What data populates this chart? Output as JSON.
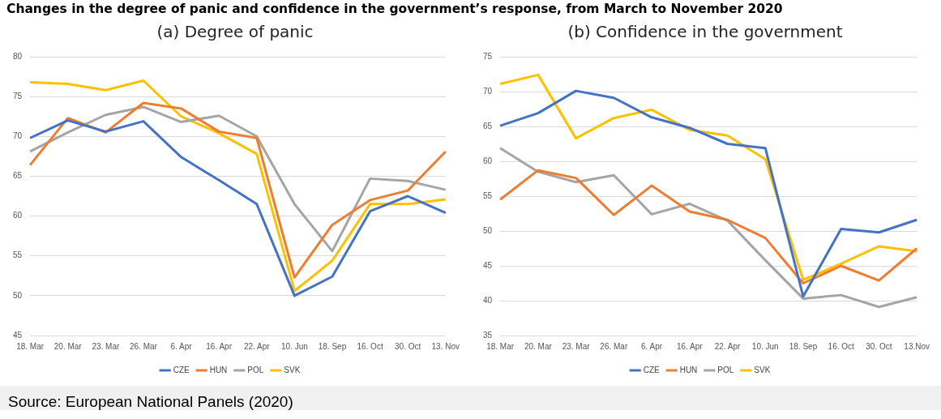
{
  "chart_data": [
    {
      "type": "line",
      "title": "Changes in the degree of panic and confidence in the government’s response, from March to November 2020",
      "subtitle": "(a) Degree of panic",
      "categories": [
        "18. Mar",
        "20. Mar",
        "23. Mar",
        "26. Mar",
        "6. Apr",
        "16. Apr",
        "22. Apr",
        "10. Jun",
        "18. Sep",
        "16. Oct",
        "30. Oct",
        "13. Nov"
      ],
      "series": [
        {
          "name": "CZE",
          "color": "#4472c4",
          "values": [
            69.8,
            72.0,
            70.6,
            71.9,
            67.4,
            64.5,
            61.5,
            50.0,
            52.4,
            60.6,
            62.5,
            60.4
          ]
        },
        {
          "name": "HUN",
          "color": "#ed7d31",
          "values": [
            66.4,
            72.3,
            70.5,
            74.2,
            73.5,
            70.6,
            69.8,
            52.3,
            58.9,
            62.0,
            63.2,
            68.1
          ]
        },
        {
          "name": "POL",
          "color": "#a5a5a5",
          "values": [
            68.1,
            70.5,
            72.7,
            73.7,
            71.8,
            72.6,
            70.0,
            61.5,
            55.6,
            64.7,
            64.4,
            63.3
          ]
        },
        {
          "name": "SVK",
          "color": "#ffc000",
          "values": [
            76.8,
            76.6,
            75.8,
            77.0,
            72.5,
            70.4,
            67.8,
            50.6,
            54.4,
            61.5,
            61.5,
            62.1
          ]
        }
      ],
      "ylim": [
        45,
        80
      ],
      "yticks": [
        45,
        50,
        55,
        60,
        65,
        70,
        75,
        80
      ],
      "grid": "y",
      "legend": "bottom",
      "marker": "none",
      "line_style": "solid"
    },
    {
      "type": "line",
      "subtitle": "(b) Confidence in the government",
      "categories": [
        "18. Mar",
        "20. Mar",
        "23. Mar",
        "26. Mar",
        "6. Apr",
        "16. Apr",
        "22. Apr",
        "10. Jun",
        "18. Sep",
        "16. Oct",
        "30. Oct",
        "13.Nov"
      ],
      "series": [
        {
          "name": "CZE",
          "color": "#4472c4",
          "values": [
            65.1,
            66.9,
            70.1,
            69.1,
            66.3,
            64.8,
            62.5,
            61.9,
            40.6,
            50.3,
            49.8,
            51.6
          ]
        },
        {
          "name": "HUN",
          "color": "#ed7d31",
          "values": [
            54.5,
            58.7,
            57.6,
            52.3,
            56.5,
            52.8,
            51.6,
            49.0,
            42.5,
            45.0,
            42.9,
            47.5
          ]
        },
        {
          "name": "POL",
          "color": "#a5a5a5",
          "values": [
            61.9,
            58.5,
            57.0,
            58.0,
            52.4,
            53.9,
            51.5,
            45.8,
            40.3,
            40.8,
            39.1,
            40.5
          ]
        },
        {
          "name": "SVK",
          "color": "#ffc000",
          "values": [
            71.1,
            72.4,
            63.3,
            66.2,
            67.4,
            64.5,
            63.7,
            60.3,
            43.0,
            45.3,
            47.8,
            47.1
          ]
        }
      ],
      "ylim": [
        35,
        75
      ],
      "yticks": [
        35,
        40,
        45,
        50,
        55,
        60,
        65,
        70,
        75
      ],
      "grid": "y",
      "legend": "bottom",
      "marker": "none",
      "line_style": "solid",
      "annotations": [
        "Source: European National Panels (2020)"
      ]
    }
  ]
}
